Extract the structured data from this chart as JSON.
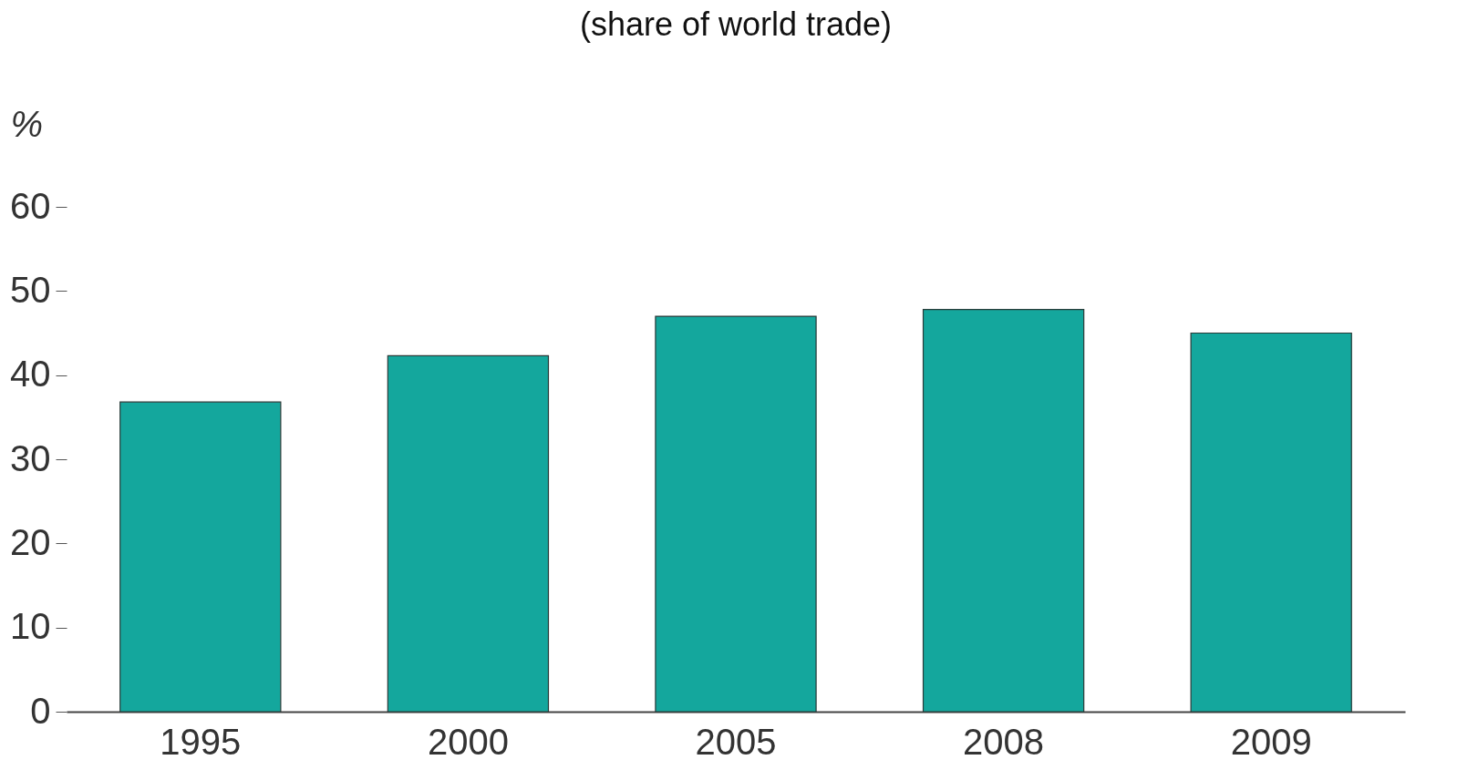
{
  "chart_data": {
    "type": "bar",
    "title": "(share of world trade)",
    "ylabel": "%",
    "categories": [
      "1995",
      "2000",
      "2005",
      "2008",
      "2009"
    ],
    "values": [
      36.8,
      42.3,
      47.0,
      47.8,
      45.0
    ],
    "color": "#14a79d",
    "ylim": [
      0,
      60
    ],
    "yticks": [
      0,
      10,
      20,
      30,
      40,
      50,
      60
    ],
    "grid": false
  }
}
